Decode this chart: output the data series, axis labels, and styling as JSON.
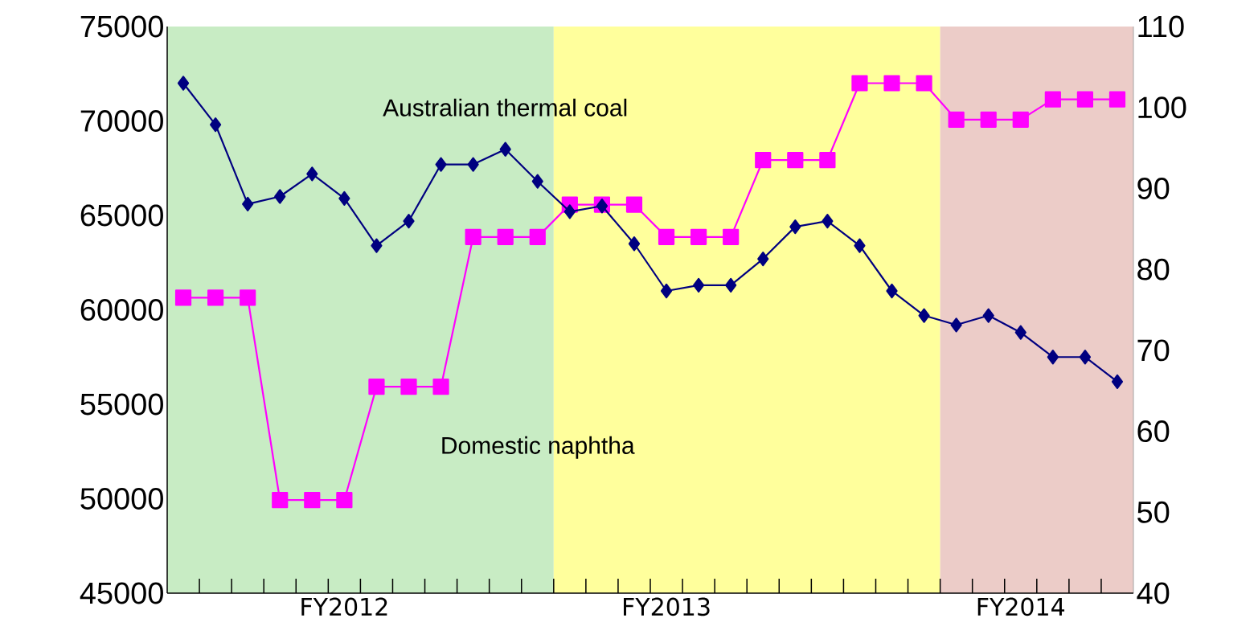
{
  "chart_data": {
    "type": "line",
    "categories": [
      null,
      null,
      null,
      null,
      null,
      "FY2012",
      null,
      null,
      null,
      null,
      null,
      null,
      null,
      null,
      null,
      "FY2013",
      null,
      null,
      null,
      null,
      null,
      null,
      null,
      null,
      null,
      null,
      "FY2014",
      null,
      null,
      null
    ],
    "series": [
      {
        "name": "Australian thermal coal",
        "color": "#000080",
        "marker": "diamond",
        "values": [
          72000,
          69800,
          65600,
          66000,
          67200,
          65900,
          63400,
          64700,
          67700,
          67700,
          68500,
          66800,
          65200,
          65500,
          63500,
          61000,
          61300,
          61300,
          62700,
          64400,
          64700,
          63400,
          61000,
          59700,
          59200,
          59700,
          58800,
          57500,
          57500,
          56200
        ]
      },
      {
        "name": "Domestic naphtha",
        "color": "#ff00ff",
        "marker": "square",
        "axis": "y2",
        "values": [
          76.5,
          76.5,
          76.5,
          51.5,
          51.5,
          51.5,
          65.5,
          65.5,
          65.5,
          84,
          84,
          84,
          88,
          88,
          88,
          84,
          84,
          84,
          93.5,
          93.5,
          93.5,
          103,
          103,
          103,
          98.5,
          98.5,
          98.5,
          101,
          101,
          101
        ]
      }
    ],
    "ylim": [
      45000,
      75000
    ],
    "yticks": [
      45000,
      50000,
      55000,
      60000,
      65000,
      70000,
      75000
    ],
    "y2lim": [
      40,
      110
    ],
    "y2ticks": [
      40,
      50,
      60,
      70,
      80,
      90,
      100,
      110
    ]
  }
}
